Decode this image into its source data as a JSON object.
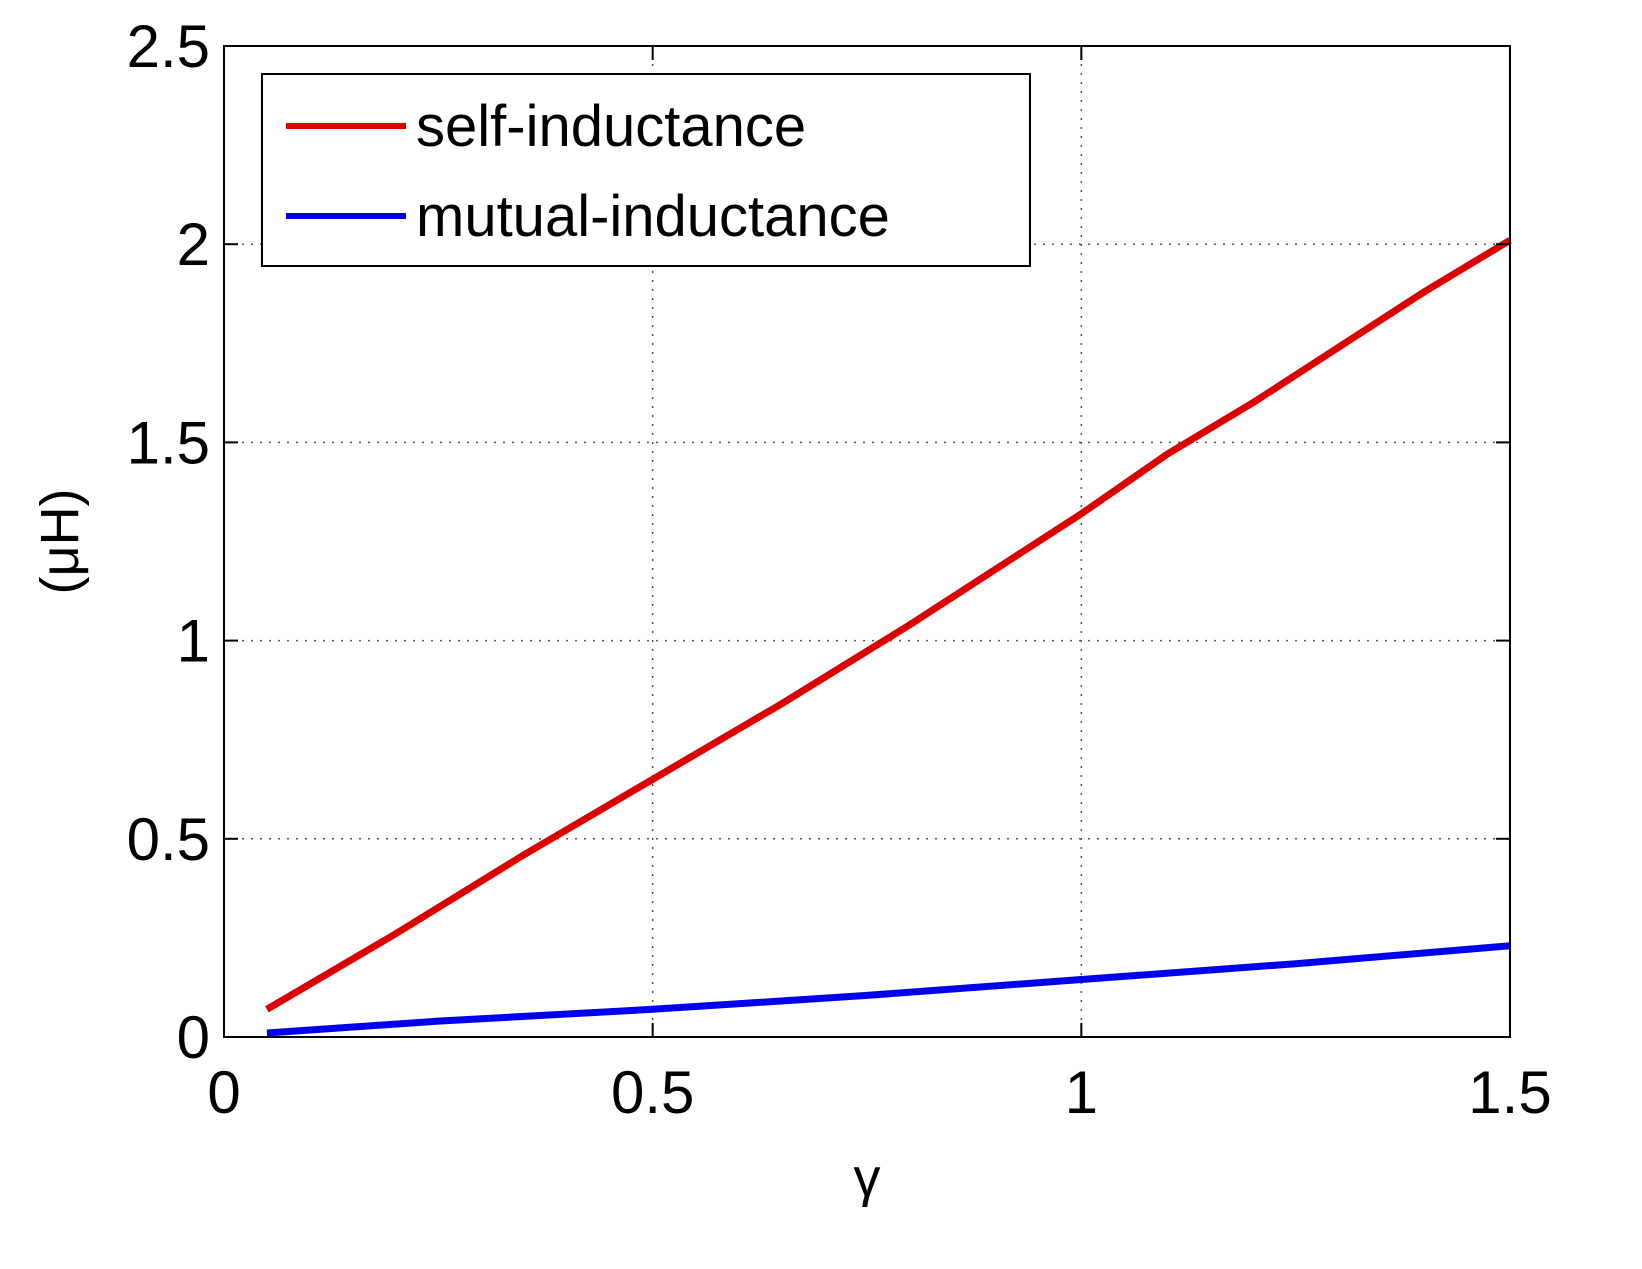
{
  "chart_data": {
    "type": "line",
    "title": "",
    "xlabel": "γ",
    "ylabel": "(μH)",
    "xlim": [
      0,
      1.5
    ],
    "ylim": [
      0,
      2.5
    ],
    "xticks": [
      0,
      0.5,
      1,
      1.5
    ],
    "xtick_labels": [
      "0",
      "0.5",
      "1",
      "1.5"
    ],
    "yticks": [
      0,
      0.5,
      1,
      1.5,
      2,
      2.5
    ],
    "ytick_labels": [
      "0",
      "0.5",
      "1",
      "1.5",
      "2",
      "2.5"
    ],
    "grid": true,
    "legend_position": "top-left",
    "series": [
      {
        "name": "self-inductance",
        "color": "#dd0000",
        "x": [
          0.05,
          0.2,
          0.35,
          0.5,
          0.65,
          0.8,
          0.9,
          1.0,
          1.1,
          1.2,
          1.3,
          1.4,
          1.5
        ],
        "y": [
          0.07,
          0.26,
          0.46,
          0.65,
          0.84,
          1.04,
          1.18,
          1.32,
          1.47,
          1.6,
          1.74,
          1.88,
          2.01
        ]
      },
      {
        "name": "mutual-inductance",
        "color": "#0000ee",
        "x": [
          0.05,
          0.25,
          0.5,
          0.75,
          1.0,
          1.25,
          1.5
        ],
        "y": [
          0.01,
          0.04,
          0.07,
          0.105,
          0.145,
          0.185,
          0.23
        ]
      }
    ]
  }
}
